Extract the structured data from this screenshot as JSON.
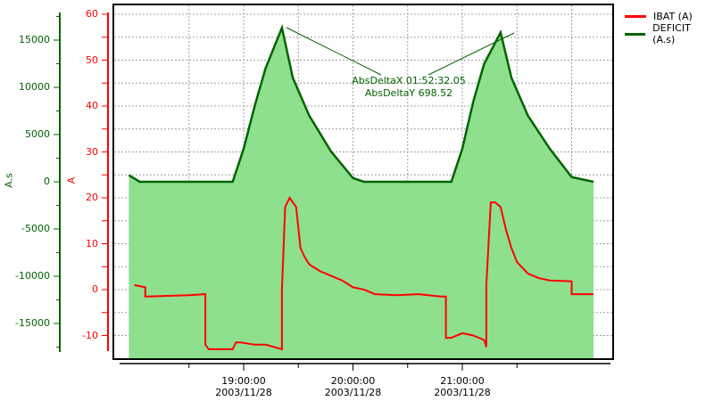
{
  "chart_data": {
    "type": "line",
    "title": "",
    "xlabel": "",
    "x_ticks": [
      {
        "time": "19:00:00",
        "date": "2003/11/28"
      },
      {
        "time": "20:00:00",
        "date": "2003/11/28"
      },
      {
        "time": "21:00:00",
        "date": "2003/11/28"
      }
    ],
    "y_axes": [
      {
        "id": "deficit",
        "label": "A.s",
        "color": "#006400",
        "range": [
          -17000,
          18000
        ],
        "ticks": [
          15000,
          10000,
          5000,
          0,
          -5000,
          -10000,
          -15000
        ]
      },
      {
        "id": "ibat",
        "label": "A",
        "color": "#ff0000",
        "range": [
          -13,
          61
        ],
        "ticks": [
          60,
          50,
          40,
          30,
          20,
          10,
          0,
          -10
        ]
      }
    ],
    "grid": true,
    "legend_position": "right",
    "series": [
      {
        "name": "IBAT (A)",
        "axis": "ibat",
        "color": "#ff0000",
        "x_hours": [
          18.0,
          18.1,
          18.1,
          18.12,
          18.5,
          18.65,
          18.65,
          18.68,
          18.9,
          18.93,
          18.93,
          18.97,
          19.1,
          19.2,
          19.35,
          19.35,
          19.38,
          19.42,
          19.48,
          19.52,
          19.56,
          19.6,
          19.7,
          19.8,
          19.9,
          20.0,
          20.1,
          20.2,
          20.4,
          20.6,
          20.8,
          20.85,
          20.85,
          20.9,
          21.0,
          21.1,
          21.2,
          21.22,
          21.22,
          21.26,
          21.3,
          21.35,
          21.4,
          21.45,
          21.5,
          21.6,
          21.7,
          21.8,
          22.0,
          22.0,
          22.2
        ],
        "values": [
          1,
          0.5,
          -1.5,
          -1.5,
          -1.2,
          -1,
          -12,
          -13,
          -13,
          -11.5,
          -11.5,
          -11.5,
          -12,
          -12,
          -13,
          0,
          18,
          20,
          18,
          9,
          7,
          5.5,
          4,
          3,
          2,
          0.5,
          0,
          -1,
          -1.2,
          -1,
          -1.5,
          -1.5,
          -10.5,
          -10.5,
          -9.5,
          -10,
          -11,
          -12.5,
          1,
          19,
          19,
          18,
          13,
          9,
          6,
          3.5,
          2.5,
          2,
          1.8,
          -1,
          -1
        ]
      },
      {
        "name": "DEFICIT (A.s)",
        "axis": "deficit",
        "color": "#006400",
        "fill": "#8ee08e",
        "x_hours": [
          17.95,
          18.05,
          18.2,
          18.5,
          18.9,
          19.0,
          19.1,
          19.2,
          19.35,
          19.45,
          19.6,
          19.8,
          20.0,
          20.1,
          20.5,
          20.9,
          21.0,
          21.1,
          21.2,
          21.35,
          21.45,
          21.6,
          21.8,
          22.0,
          22.2
        ],
        "values": [
          700,
          0,
          0,
          0,
          0,
          3500,
          8000,
          12000,
          16300,
          11000,
          7000,
          3200,
          400,
          0,
          0,
          0,
          3500,
          8500,
          12500,
          15800,
          11000,
          7000,
          3500,
          500,
          0
        ]
      }
    ],
    "annotations": [
      {
        "text": "AbsDeltaX 01:52:32.05",
        "line": 1
      },
      {
        "text": "AbsDeltaY 698.52",
        "line": 2
      }
    ]
  },
  "legend": {
    "items": [
      {
        "label": "IBAT (A)",
        "color": "#ff0000"
      },
      {
        "label": "DEFICIT (A.s)",
        "color": "#006400"
      }
    ]
  },
  "annotation": {
    "line1": "AbsDeltaX 01:52:32.05",
    "line2": "AbsDeltaY 698.52"
  },
  "axes": {
    "left_outer": {
      "label": "A.s",
      "ticks": [
        "15000",
        "10000",
        "5000",
        "0",
        "-5000",
        "-10000",
        "-15000"
      ]
    },
    "left_inner": {
      "label": "A",
      "ticks": [
        "60",
        "50",
        "40",
        "30",
        "20",
        "10",
        "0",
        "-10"
      ]
    },
    "x": {
      "ticks": [
        {
          "time": "19:00:00",
          "date": "2003/11/28"
        },
        {
          "time": "20:00:00",
          "date": "2003/11/28"
        },
        {
          "time": "21:00:00",
          "date": "2003/11/28"
        }
      ]
    }
  }
}
